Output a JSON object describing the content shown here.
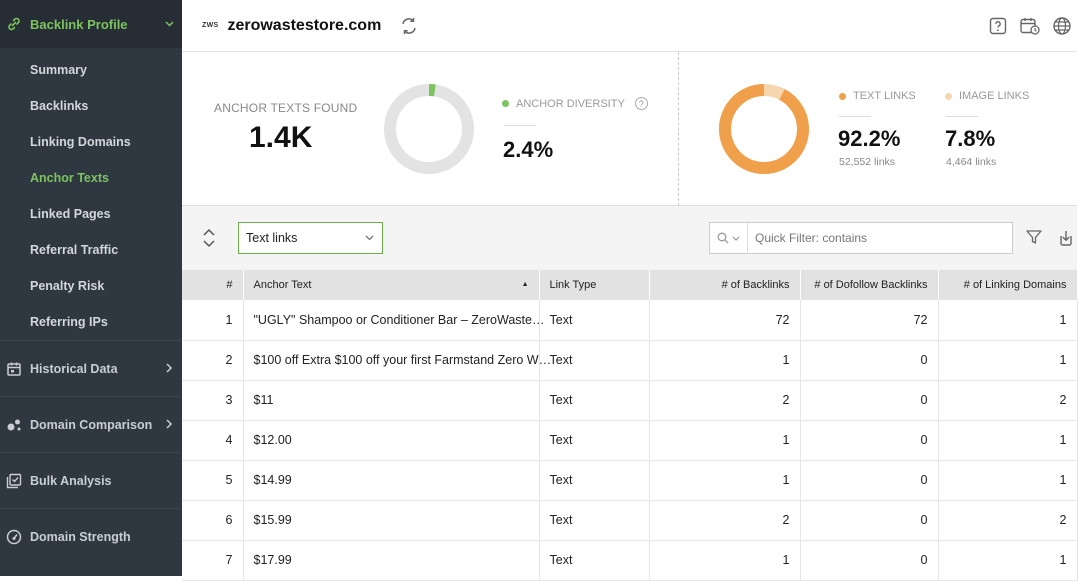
{
  "sidebar": {
    "header": {
      "label": "Backlink Profile"
    },
    "items": [
      {
        "label": "Summary",
        "active": false
      },
      {
        "label": "Backlinks",
        "active": false
      },
      {
        "label": "Linking Domains",
        "active": false
      },
      {
        "label": "Anchor Texts",
        "active": true
      },
      {
        "label": "Linked Pages",
        "active": false
      },
      {
        "label": "Referral Traffic",
        "active": false
      },
      {
        "label": "Penalty Risk",
        "active": false
      },
      {
        "label": "Referring IPs",
        "active": false
      }
    ],
    "sections": [
      {
        "label": "Historical Data",
        "icon": "calendar-icon"
      },
      {
        "label": "Domain Comparison",
        "icon": "comparison-icon"
      },
      {
        "label": "Bulk Analysis",
        "icon": "bulk-analysis-icon"
      },
      {
        "label": "Domain Strength",
        "icon": "gauge-icon"
      }
    ]
  },
  "topbar": {
    "logo_text": "ZWS",
    "domain": "zerowastestore.com"
  },
  "stats": {
    "anchor_texts_label": "ANCHOR TEXTS FOUND",
    "anchor_texts_value": "1.4K",
    "anchor_diversity_label": "ANCHOR DIVERSITY",
    "anchor_diversity_value": "2.4%",
    "anchor_diversity_fraction": 0.024,
    "text_links_label": "TEXT LINKS",
    "text_links_value": "92.2%",
    "text_links_count": "52,552 links",
    "image_links_label": "IMAGE LINKS",
    "image_links_value": "7.8%",
    "image_links_count": "4,464 links",
    "text_links_fraction": 0.922
  },
  "colors": {
    "accent_green": "#7cc35f",
    "text_links_orange": "#f0a04b",
    "image_links_peach": "#f6d6ad",
    "donut_gray": "#e3e3e3"
  },
  "toolbar": {
    "link_type_selected": "Text links",
    "quick_filter_placeholder": "Quick Filter: contains"
  },
  "table": {
    "headers": {
      "num": "#",
      "anchor": "Anchor Text",
      "type": "Link Type",
      "backlinks": "# of Backlinks",
      "dofollow": "# of Dofollow Backlinks",
      "domains": "# of Linking Domains"
    },
    "rows": [
      {
        "num": "1",
        "anchor": "\"UGLY\" Shampoo or Conditioner Bar – ZeroWaste…",
        "type": "Text",
        "backlinks": "72",
        "dofollow": "72",
        "domains": "1"
      },
      {
        "num": "2",
        "anchor": "$100 off Extra $100 off your first Farmstand Zero W…",
        "type": "Text",
        "backlinks": "1",
        "dofollow": "0",
        "domains": "1"
      },
      {
        "num": "3",
        "anchor": "$11",
        "type": "Text",
        "backlinks": "2",
        "dofollow": "0",
        "domains": "2"
      },
      {
        "num": "4",
        "anchor": "$12.00",
        "type": "Text",
        "backlinks": "1",
        "dofollow": "0",
        "domains": "1"
      },
      {
        "num": "5",
        "anchor": "$14.99",
        "type": "Text",
        "backlinks": "1",
        "dofollow": "0",
        "domains": "1"
      },
      {
        "num": "6",
        "anchor": "$15.99",
        "type": "Text",
        "backlinks": "2",
        "dofollow": "0",
        "domains": "2"
      },
      {
        "num": "7",
        "anchor": "$17.99",
        "type": "Text",
        "backlinks": "1",
        "dofollow": "0",
        "domains": "1"
      }
    ]
  }
}
